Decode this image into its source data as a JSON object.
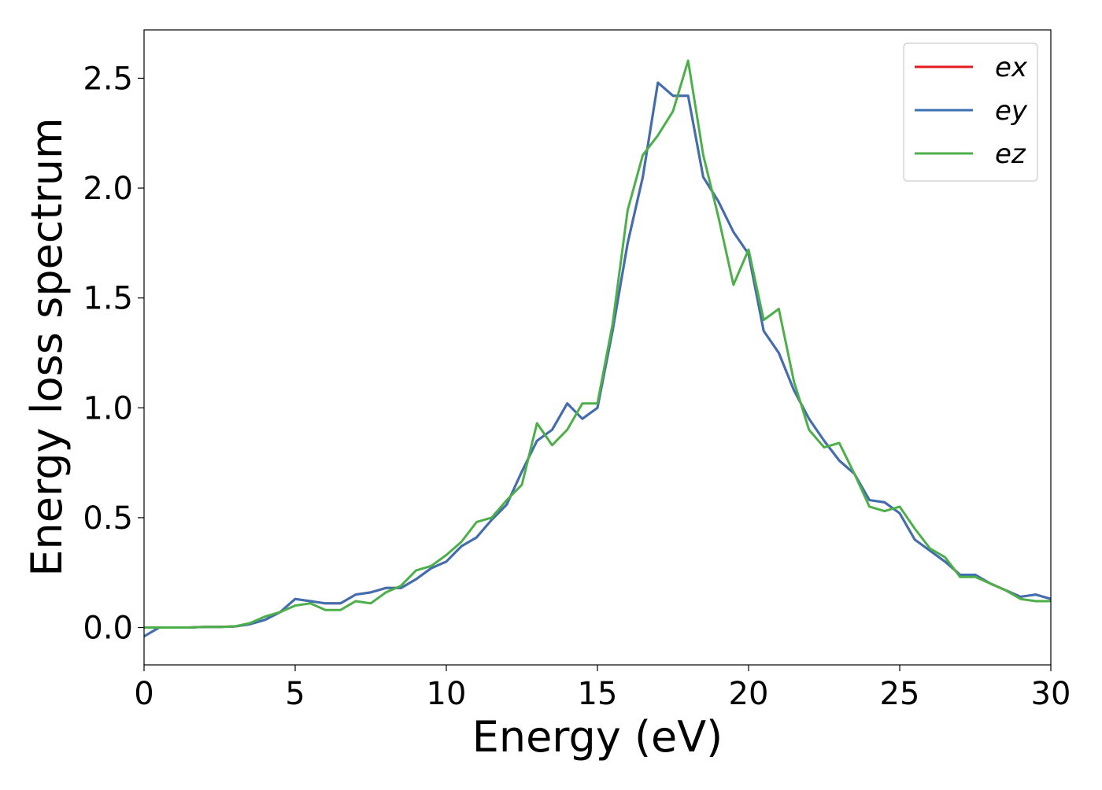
{
  "chart_data": {
    "type": "line",
    "xlabel": "Energy (eV)",
    "ylabel": "Energy loss spectrum",
    "x": [
      0,
      0.5,
      1,
      1.5,
      2,
      2.5,
      3,
      3.5,
      4,
      4.5,
      5,
      5.5,
      6,
      6.5,
      7,
      7.5,
      8,
      8.5,
      9,
      9.5,
      10,
      10.5,
      11,
      11.5,
      12,
      12.5,
      13,
      13.5,
      14,
      14.5,
      15,
      15.5,
      16,
      16.5,
      17,
      17.5,
      18,
      18.5,
      19,
      19.5,
      20,
      20.5,
      21,
      21.5,
      22,
      22.5,
      23,
      23.5,
      24,
      24.5,
      25,
      25.5,
      26,
      26.5,
      27,
      27.5,
      28,
      28.5,
      29,
      29.5,
      30
    ],
    "series": [
      {
        "name": "ex",
        "color": "#e41a1c",
        "values": [
          -0.04,
          0,
          0,
          0,
          0.003,
          0.003,
          0.005,
          0.015,
          0.035,
          0.07,
          0.13,
          0.12,
          0.11,
          0.11,
          0.15,
          0.16,
          0.18,
          0.18,
          0.22,
          0.27,
          0.3,
          0.37,
          0.41,
          0.49,
          0.56,
          0.71,
          0.85,
          0.9,
          1.02,
          0.95,
          1.0,
          1.35,
          1.75,
          2.05,
          2.48,
          2.42,
          2.42,
          2.05,
          1.94,
          1.8,
          1.7,
          1.35,
          1.25,
          1.08,
          0.95,
          0.85,
          0.76,
          0.7,
          0.58,
          0.57,
          0.52,
          0.4,
          0.35,
          0.3,
          0.24,
          0.24,
          0.2,
          0.17,
          0.14,
          0.15,
          0.13
        ]
      },
      {
        "name": "ey",
        "color": "#3d70b2",
        "values": [
          -0.04,
          0,
          0,
          0,
          0.003,
          0.003,
          0.005,
          0.015,
          0.035,
          0.07,
          0.13,
          0.12,
          0.11,
          0.11,
          0.15,
          0.16,
          0.18,
          0.18,
          0.22,
          0.27,
          0.3,
          0.37,
          0.41,
          0.49,
          0.56,
          0.71,
          0.85,
          0.9,
          1.02,
          0.95,
          1.0,
          1.35,
          1.75,
          2.05,
          2.48,
          2.42,
          2.42,
          2.05,
          1.94,
          1.8,
          1.7,
          1.35,
          1.25,
          1.08,
          0.95,
          0.85,
          0.76,
          0.7,
          0.58,
          0.57,
          0.52,
          0.4,
          0.35,
          0.3,
          0.24,
          0.24,
          0.2,
          0.17,
          0.14,
          0.15,
          0.13
        ]
      },
      {
        "name": "ez",
        "color": "#4daf4a",
        "values": [
          0,
          0,
          0,
          0,
          0.003,
          0.003,
          0.005,
          0.02,
          0.05,
          0.07,
          0.1,
          0.11,
          0.08,
          0.08,
          0.12,
          0.11,
          0.16,
          0.19,
          0.26,
          0.28,
          0.33,
          0.39,
          0.48,
          0.5,
          0.58,
          0.65,
          0.93,
          0.83,
          0.9,
          1.02,
          1.02,
          1.38,
          1.9,
          2.15,
          2.24,
          2.35,
          2.58,
          2.15,
          1.87,
          1.56,
          1.72,
          1.4,
          1.45,
          1.12,
          0.9,
          0.82,
          0.84,
          0.7,
          0.55,
          0.53,
          0.55,
          0.45,
          0.36,
          0.32,
          0.23,
          0.23,
          0.2,
          0.17,
          0.13,
          0.12,
          0.12
        ]
      }
    ],
    "xlim": [
      0,
      30
    ],
    "xticks": [
      0,
      5,
      10,
      15,
      20,
      25,
      30
    ],
    "ylim": [
      -0.17,
      2.72
    ],
    "yticks": [
      {
        "value": 0,
        "label": "0.0"
      },
      0.5,
      {
        "value": 1,
        "label": "1.0"
      },
      1.5,
      {
        "value": 2,
        "label": "2.0"
      },
      2.5
    ],
    "grid": false,
    "legend": "upper right"
  }
}
